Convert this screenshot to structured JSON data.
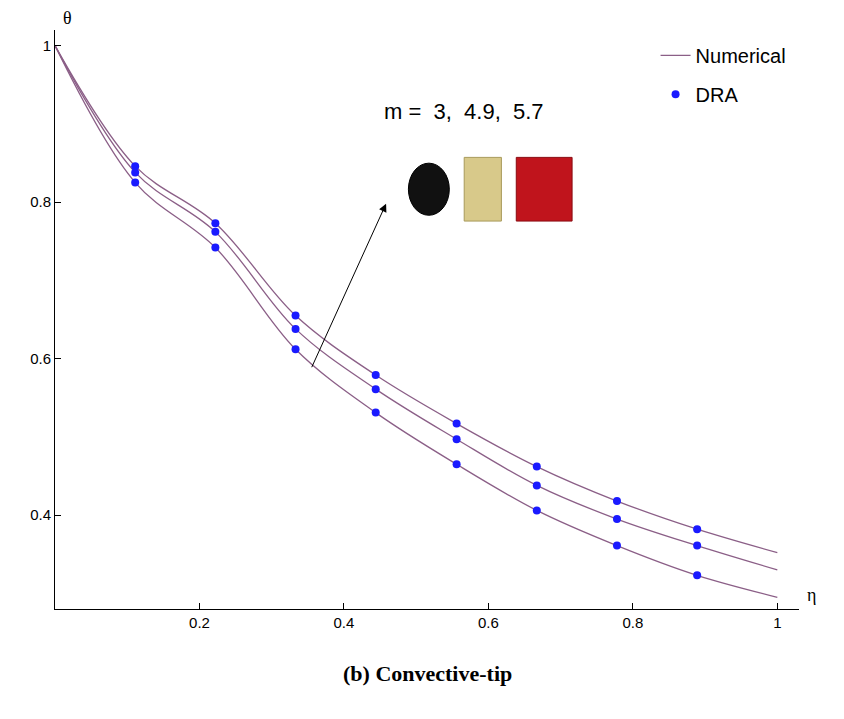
{
  "chart_data": {
    "type": "line",
    "title": "(b) Convective-tip",
    "x_label": "η",
    "y_label": "θ",
    "annotation": "m =  3,  4.9,  5.7",
    "x": [
      0,
      0.111,
      0.222,
      0.333,
      0.444,
      0.556,
      0.667,
      0.778,
      0.889,
      1.0
    ],
    "series": [
      {
        "name": "Numerical",
        "type": "line",
        "color": "#8b5f87",
        "line_style": "solid",
        "values": [
          1.0,
          0.825,
          0.742,
          0.612,
          0.531,
          0.465,
          0.406,
          0.361,
          0.323,
          0.295
        ]
      },
      {
        "name": "Numerical",
        "type": "line",
        "color": "#8b5f87",
        "line_style": "solid",
        "values": [
          1.0,
          0.838,
          0.762,
          0.638,
          0.561,
          0.497,
          0.438,
          0.395,
          0.361,
          0.33
        ]
      },
      {
        "name": "Numerical",
        "type": "line",
        "color": "#8b5f87",
        "line_style": "solid",
        "values": [
          1.0,
          0.846,
          0.773,
          0.655,
          0.579,
          0.517,
          0.462,
          0.418,
          0.382,
          0.352
        ]
      },
      {
        "name": "DRA",
        "type": "scatter",
        "color": "#1a1aff",
        "marker": "circle",
        "values": [
          null,
          0.825,
          0.742,
          0.612,
          0.531,
          0.465,
          0.406,
          0.361,
          0.323,
          null
        ]
      },
      {
        "name": "DRA",
        "type": "scatter",
        "color": "#1a1aff",
        "marker": "circle",
        "values": [
          null,
          0.838,
          0.762,
          0.638,
          0.561,
          0.497,
          0.438,
          0.395,
          0.361,
          null
        ]
      },
      {
        "name": "DRA",
        "type": "scatter",
        "color": "#1a1aff",
        "marker": "circle",
        "values": [
          null,
          0.846,
          0.773,
          0.655,
          0.579,
          0.517,
          0.462,
          0.418,
          0.382,
          null
        ]
      }
    ],
    "xlim": [
      0,
      1.03
    ],
    "ylim": [
      0.28,
      1.02
    ],
    "xticks": [
      0.2,
      0.4,
      0.6,
      0.8,
      1.0
    ],
    "yticks": [
      0.4,
      0.6,
      0.8,
      1.0
    ],
    "grid": false,
    "legend": "top-right"
  }
}
